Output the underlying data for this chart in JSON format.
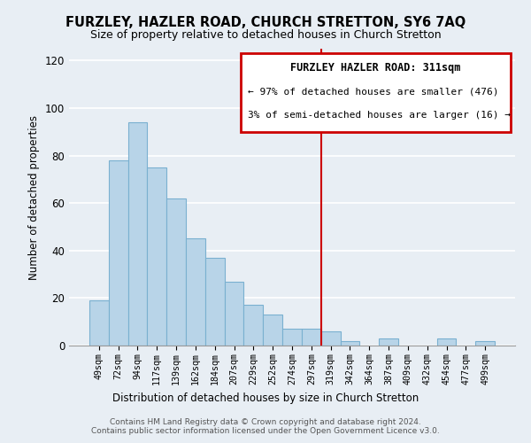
{
  "title": "FURZLEY, HAZLER ROAD, CHURCH STRETTON, SY6 7AQ",
  "subtitle": "Size of property relative to detached houses in Church Stretton",
  "xlabel": "Distribution of detached houses by size in Church Stretton",
  "ylabel": "Number of detached properties",
  "bar_color": "#b8d4e8",
  "bar_edge_color": "#7ab0d0",
  "categories": [
    "49sqm",
    "72sqm",
    "94sqm",
    "117sqm",
    "139sqm",
    "162sqm",
    "184sqm",
    "207sqm",
    "229sqm",
    "252sqm",
    "274sqm",
    "297sqm",
    "319sqm",
    "342sqm",
    "364sqm",
    "387sqm",
    "409sqm",
    "432sqm",
    "454sqm",
    "477sqm",
    "499sqm"
  ],
  "values": [
    19,
    78,
    94,
    75,
    62,
    45,
    37,
    27,
    17,
    13,
    7,
    7,
    6,
    2,
    0,
    3,
    0,
    0,
    3,
    0,
    2
  ],
  "ylim": [
    0,
    125
  ],
  "yticks": [
    0,
    20,
    40,
    60,
    80,
    100,
    120
  ],
  "vline_index": 11.5,
  "vline_color": "#cc0000",
  "annotation_title": "FURZLEY HAZLER ROAD: 311sqm",
  "annotation_line1": "← 97% of detached houses are smaller (476)",
  "annotation_line2": "3% of semi-detached houses are larger (16) →",
  "annotation_box_color": "#cc0000",
  "annotation_bg": "#ffffff",
  "footer1": "Contains HM Land Registry data © Crown copyright and database right 2024.",
  "footer2": "Contains public sector information licensed under the Open Government Licence v3.0.",
  "background_color": "#e8eef4",
  "plot_bg_color": "#e8eef4",
  "grid_color": "#ffffff"
}
